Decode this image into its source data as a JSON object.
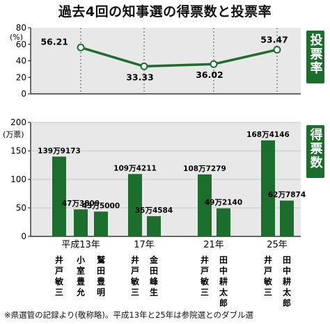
{
  "chart_data": {
    "title": "過去4回の知事選の得票数と投票率",
    "footnote": "※県選管の記録より(敬称略)。平成13年と25年は参院選とのダブル選",
    "colors": {
      "accent": "#1b6e2b",
      "panel_bg": "#e8e8e8",
      "axis": "#111111"
    },
    "years": [
      "平成13年",
      "17年",
      "21年",
      "25年"
    ],
    "panels": [
      {
        "type": "line",
        "side_label": "投票率",
        "unit": "(%)",
        "ylim": [
          0,
          80
        ],
        "yticks": [
          "0",
          "20",
          "40",
          "60",
          "80"
        ],
        "values": [
          56.21,
          33.33,
          36.02,
          53.47
        ],
        "labels": [
          "56.21",
          "33.33",
          "36.02",
          "53.47"
        ]
      },
      {
        "type": "bar",
        "side_label": "得票数",
        "unit": "(万票)",
        "ylim": [
          0,
          200
        ],
        "yticks": [
          "0",
          "50",
          "100",
          "150",
          "200"
        ],
        "groups": [
          {
            "year": "平成13年",
            "bars": [
              {
                "candidate": "井戸敏三",
                "votes": 1399173,
                "label": "139万9173"
              },
              {
                "candidate": "小室豊允",
                "votes": 473809,
                "label": "47万3809"
              },
              {
                "candidate": "鷲田豊明",
                "votes": 435000,
                "label": "43万5000"
              }
            ]
          },
          {
            "year": "17年",
            "bars": [
              {
                "candidate": "井戸敏三",
                "votes": 1094211,
                "label": "109万4211"
              },
              {
                "candidate": "金田峰生",
                "votes": 354584,
                "label": "35万4584"
              }
            ]
          },
          {
            "year": "21年",
            "bars": [
              {
                "candidate": "井戸敏三",
                "votes": 1087279,
                "label": "108万7279"
              },
              {
                "candidate": "田中耕太郎",
                "votes": 492140,
                "label": "49万2140"
              }
            ]
          },
          {
            "year": "25年",
            "bars": [
              {
                "candidate": "井戸敏三",
                "votes": 1684146,
                "label": "168万4146"
              },
              {
                "candidate": "田中耕太郎",
                "votes": 627874,
                "label": "62万7874"
              }
            ]
          }
        ]
      }
    ]
  }
}
